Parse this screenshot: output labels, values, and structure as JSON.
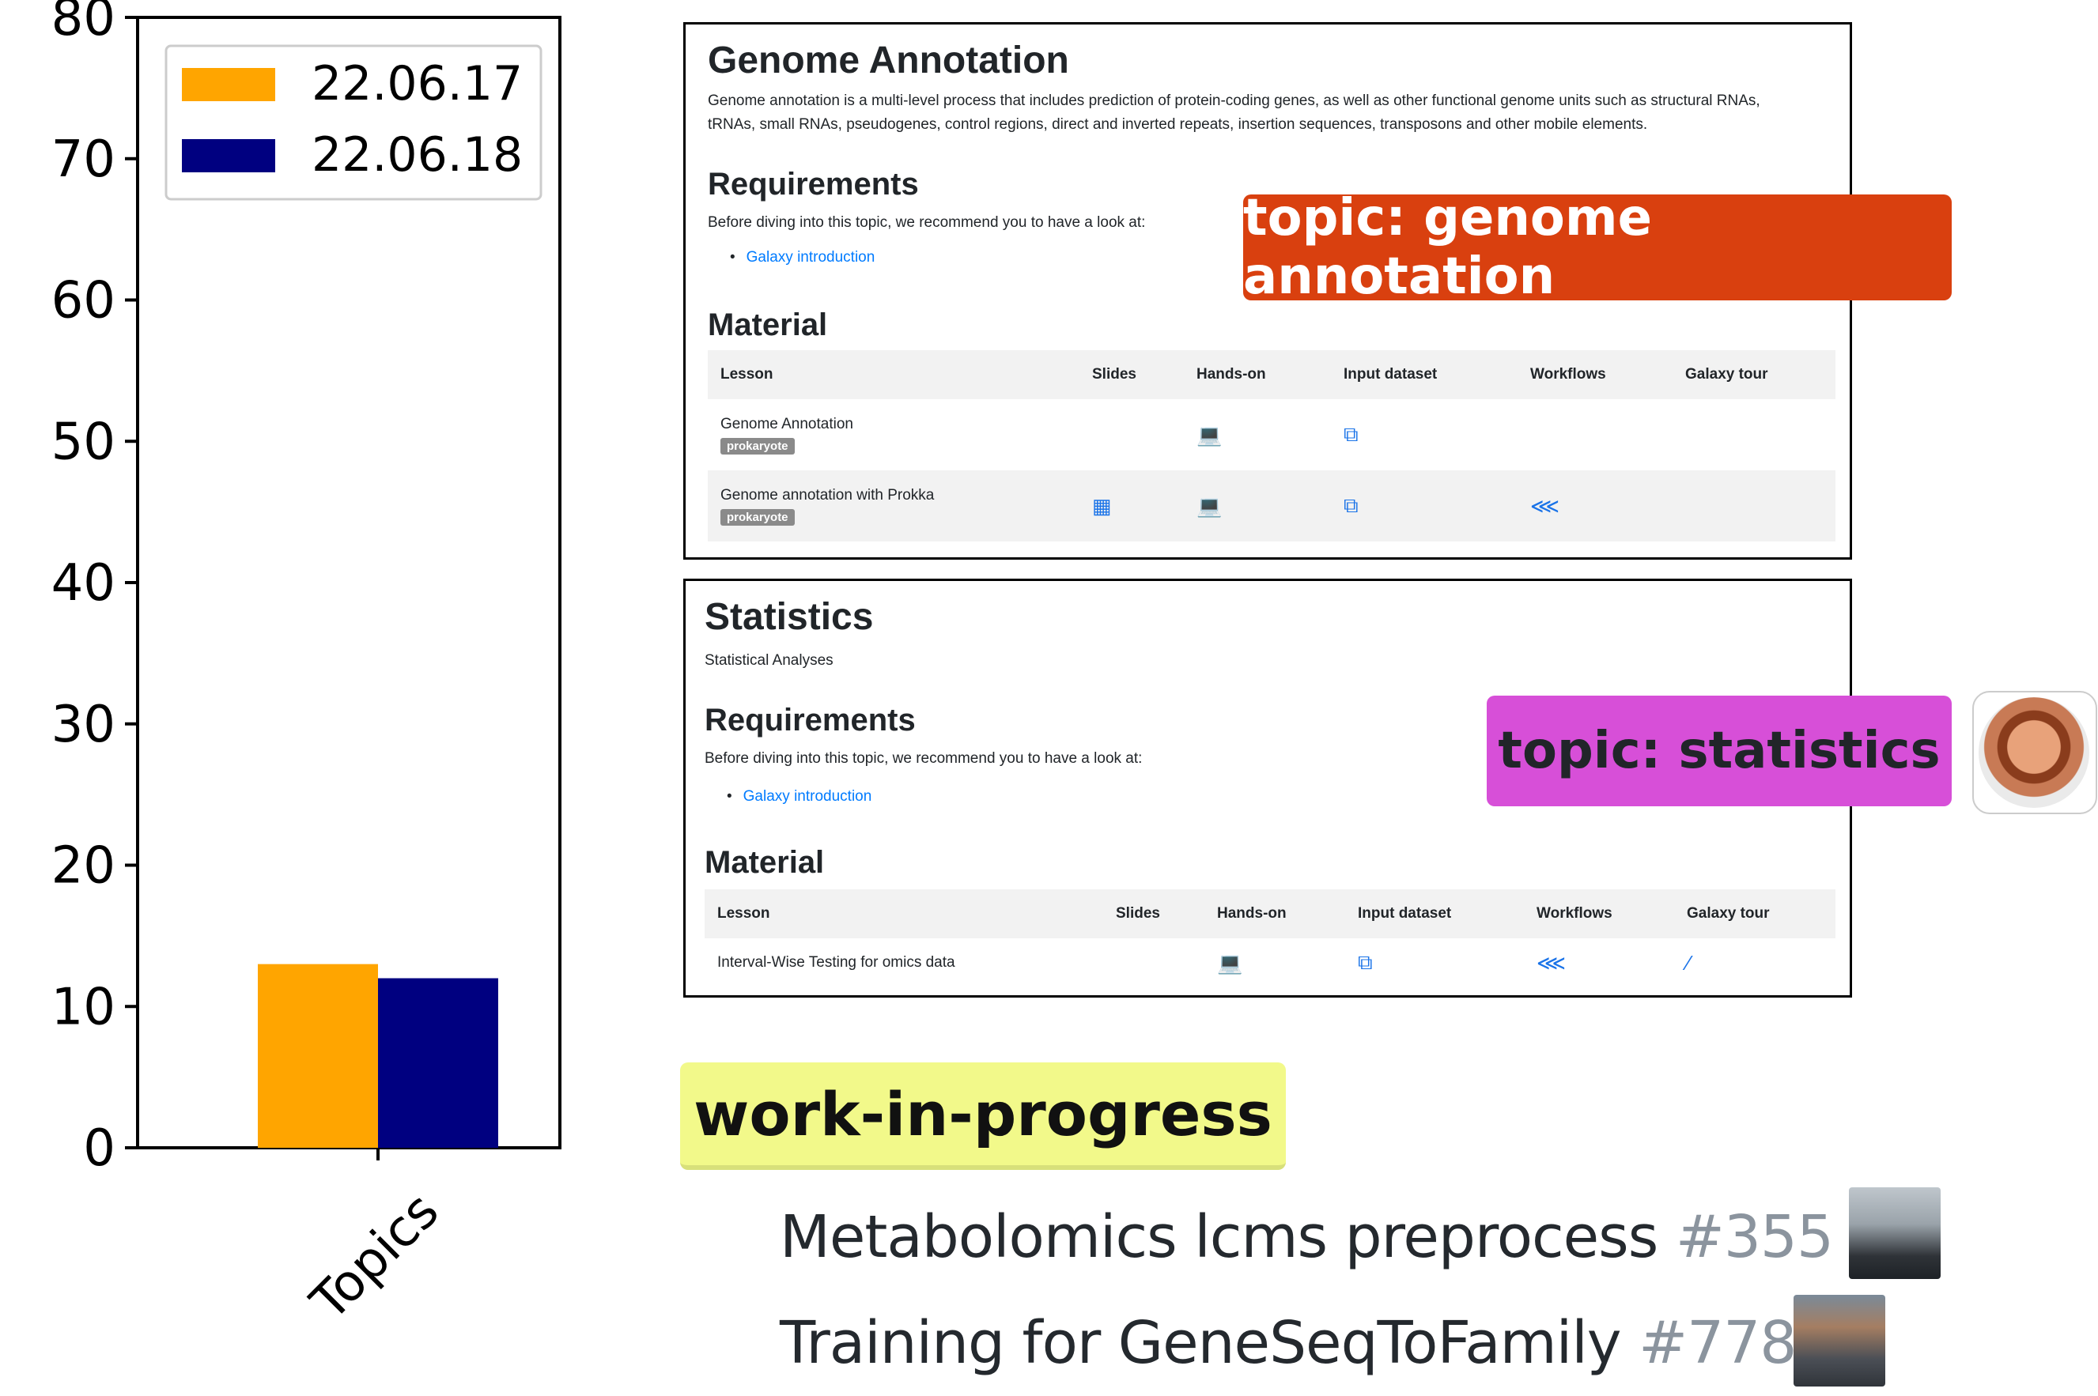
{
  "chart_data": {
    "type": "bar",
    "categories": [
      "Topics"
    ],
    "series": [
      {
        "name": "22.06.17",
        "values": [
          13
        ],
        "color": "#FFA500"
      },
      {
        "name": "22.06.18",
        "values": [
          12
        ],
        "color": "#000080"
      }
    ],
    "title": "",
    "xlabel": "",
    "ylabel": "",
    "ylim": [
      0,
      80
    ],
    "yticks": [
      0,
      10,
      20,
      30,
      40,
      50,
      60,
      70,
      80
    ],
    "legend_position": "top-left",
    "grid": false
  },
  "genome_card": {
    "title": "Genome Annotation",
    "description_1": "Genome annotation is a multi-level process that includes prediction of protein-coding genes, as well as other functional genome units such as structural RNAs,",
    "description_2": "tRNAs, small RNAs, pseudogenes, control regions, direct and inverted repeats, insertion sequences, transposons and other mobile elements.",
    "requirements_heading": "Requirements",
    "requirements_text": "Before diving into this topic, we recommend you to have a look at:",
    "requirements_link": "Galaxy introduction",
    "material_heading": "Material",
    "columns": [
      "Lesson",
      "Slides",
      "Hands-on",
      "Input dataset",
      "Workflows",
      "Galaxy tour"
    ],
    "rows": [
      {
        "lesson": "Genome Annotation",
        "badge": "prokaryote",
        "slides": "",
        "hands_on": "laptop-icon",
        "input": "copy-icon",
        "workflows": "",
        "tour": ""
      },
      {
        "lesson": "Genome annotation with Prokka",
        "badge": "prokaryote",
        "slides": "slideshare-icon",
        "hands_on": "laptop-icon",
        "input": "copy-icon",
        "workflows": "share-icon",
        "tour": ""
      }
    ]
  },
  "stats_card": {
    "title": "Statistics",
    "subtitle": "Statistical Analyses",
    "requirements_heading": "Requirements",
    "requirements_text": "Before diving into this topic, we recommend you to have a look at:",
    "requirements_link": "Galaxy introduction",
    "material_heading": "Material",
    "columns": [
      "Lesson",
      "Slides",
      "Hands-on",
      "Input dataset",
      "Workflows",
      "Galaxy tour"
    ],
    "rows": [
      {
        "lesson": "Interval-Wise Testing for omics data",
        "slides": "",
        "hands_on": "laptop-icon",
        "input": "copy-icon",
        "workflows": "share-icon",
        "tour": "magic-icon"
      }
    ]
  },
  "tags": {
    "genome": "topic: genome annotation",
    "statistics": "topic: statistics",
    "wip": "work-in-progress"
  },
  "pull_requests": [
    {
      "title": "Metabolomics lcms preprocess",
      "number": "#355"
    },
    {
      "title": "Training for GeneSeqToFamily",
      "number": "#778"
    }
  ],
  "icons": {
    "laptop": "💻",
    "copy": "⧉",
    "share": "⋘",
    "slides": "▦",
    "magic": "⁄"
  },
  "colors": {
    "link": "#007bff",
    "icon": "#1a73e8",
    "genome_tag": "#d9400f",
    "stats_tag": "#d74fd8",
    "wip_tag": "#f2f98a"
  }
}
